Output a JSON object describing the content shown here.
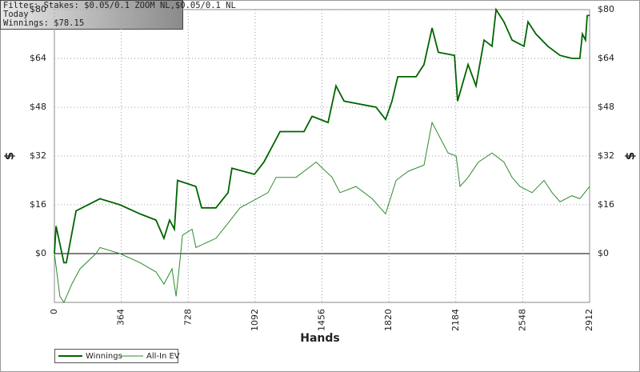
{
  "chart_data": {
    "type": "line",
    "annotations": [
      "Filter: Stakes: $0.05/0.1 ZOOM NL,$0.05/0.1 NL",
      "Today",
      "Winnings: $78.15"
    ],
    "xlabel": "Hands",
    "ylabel": "$",
    "y2label": "$",
    "xlim": [
      0,
      2912
    ],
    "xticks": [
      0,
      364,
      728,
      1092,
      1456,
      1820,
      2184,
      2548,
      2912
    ],
    "ylim": [
      -16,
      80
    ],
    "yticks": [
      {
        "value": 0,
        "label": "$0"
      },
      {
        "value": 16,
        "label": "$16"
      },
      {
        "value": 32,
        "label": "$32"
      },
      {
        "value": 48,
        "label": "$48"
      },
      {
        "value": 64,
        "label": "$64"
      },
      {
        "value": 80,
        "label": "$80"
      }
    ],
    "grid": true,
    "legend": "bottom-left",
    "series": [
      {
        "name": "Winnings",
        "color": "#006400",
        "x": [
          0,
          9,
          52,
          65,
          118,
          248,
          357,
          466,
          553,
          596,
          627,
          653,
          670,
          770,
          801,
          879,
          945,
          966,
          1088,
          1140,
          1228,
          1358,
          1402,
          1489,
          1532,
          1576,
          1750,
          1802,
          1837,
          1868,
          1968,
          2011,
          2055,
          2089,
          2177,
          2194,
          2251,
          2294,
          2338,
          2381,
          2403,
          2446,
          2490,
          2555,
          2577,
          2620,
          2685,
          2751,
          2816,
          2859,
          2873,
          2890,
          2899,
          2912
        ],
        "values": [
          0,
          9,
          -3,
          -3,
          14,
          18,
          16,
          13,
          11,
          5,
          11,
          8,
          24,
          22,
          15,
          15,
          20,
          28,
          26,
          30,
          40,
          40,
          45,
          43,
          55,
          50,
          48,
          44,
          50,
          58,
          58,
          62,
          74,
          66,
          65,
          50,
          62,
          55,
          70,
          68,
          80,
          76,
          70,
          68,
          76,
          72,
          68,
          65,
          64,
          64,
          72,
          70,
          78,
          78.15
        ]
      },
      {
        "name": "All-In EV",
        "color": "#2e8b2e",
        "x": [
          0,
          30,
          52,
          95,
          139,
          226,
          248,
          357,
          466,
          553,
          596,
          640,
          662,
          684,
          697,
          749,
          770,
          879,
          945,
          1010,
          1162,
          1206,
          1315,
          1424,
          1511,
          1554,
          1641,
          1729,
          1802,
          1859,
          1925,
          2011,
          2055,
          2142,
          2186,
          2207,
          2251,
          2307,
          2381,
          2446,
          2490,
          2533,
          2599,
          2664,
          2708,
          2751,
          2816,
          2859,
          2912
        ],
        "values": [
          0,
          -14,
          -16,
          -10,
          -5,
          0,
          2,
          0,
          -3,
          -6,
          -10,
          -5,
          -14,
          -2,
          6,
          8,
          2,
          5,
          10,
          15,
          20,
          25,
          25,
          30,
          25,
          20,
          22,
          18,
          13,
          24,
          27,
          29,
          43,
          33,
          32,
          22,
          25,
          30,
          33,
          30,
          25,
          22,
          20,
          24,
          20,
          17,
          19,
          18,
          22
        ]
      }
    ]
  }
}
